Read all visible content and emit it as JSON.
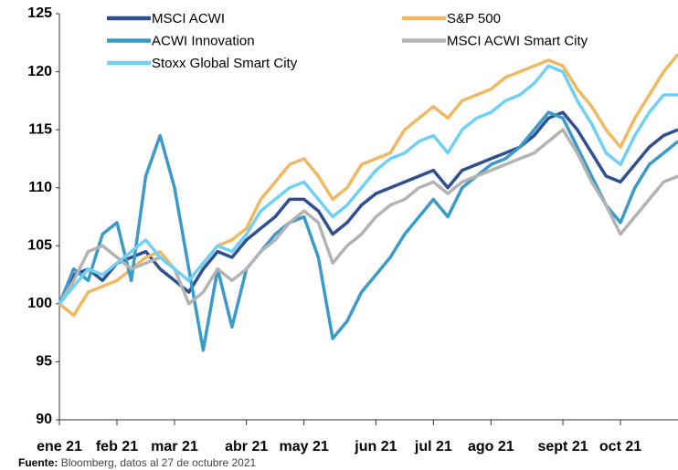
{
  "chart_data": {
    "type": "line",
    "categories": [
      "ene 21",
      null,
      null,
      null,
      "feb 21",
      null,
      null,
      null,
      "mar 21",
      null,
      null,
      null,
      null,
      "abr 21",
      null,
      null,
      null,
      "may 21",
      null,
      null,
      null,
      null,
      "jun 21",
      null,
      null,
      null,
      "jul 21",
      null,
      null,
      null,
      "ago 21",
      null,
      null,
      null,
      null,
      "sept 21",
      null,
      null,
      null,
      "oct 21",
      null,
      null,
      null,
      null
    ],
    "series": [
      {
        "name": "MSCI ACWI",
        "color": "#2f4f8f",
        "values": [
          100,
          102.5,
          103,
          102,
          103.5,
          104,
          104.5,
          103,
          102,
          101,
          103,
          104.5,
          104,
          105.5,
          106.5,
          107.5,
          109,
          109,
          108,
          106,
          107,
          108.5,
          109.5,
          110,
          110.5,
          111,
          111.5,
          110,
          111.5,
          112,
          112.5,
          113,
          113.5,
          114.5,
          116,
          116.5,
          115,
          113,
          111,
          110.5,
          112,
          113.5,
          114.5,
          115
        ]
      },
      {
        "name": "S&P 500",
        "color": "#f0b860",
        "values": [
          100,
          99,
          101,
          101.5,
          102,
          103,
          104,
          104.5,
          103,
          102,
          103.5,
          105,
          105.5,
          106.5,
          109,
          110.5,
          112,
          112.5,
          111,
          109,
          110,
          112,
          112.5,
          113,
          115,
          116,
          117,
          116,
          117.5,
          118,
          118.5,
          119.5,
          120,
          120.5,
          121,
          120.5,
          118.5,
          117,
          115,
          113.5,
          116,
          118,
          120,
          121.5
        ]
      },
      {
        "name": "ACWI Innovation",
        "color": "#3a9ac8",
        "values": [
          100,
          103,
          102,
          106,
          107,
          102,
          111,
          114.5,
          110,
          103,
          96,
          103,
          98,
          103,
          104.5,
          106,
          107,
          107.5,
          104,
          97,
          98.5,
          101,
          102.5,
          104,
          106,
          107.5,
          109,
          107.5,
          110,
          111,
          112,
          112.5,
          113.5,
          115,
          116.5,
          116,
          113.5,
          111,
          108.5,
          107,
          110,
          112,
          113,
          114
        ]
      },
      {
        "name": "MSCI ACWI Smart City",
        "color": "#b3b3b3",
        "values": [
          100,
          102,
          104.5,
          105,
          104,
          103,
          103.5,
          104,
          103,
          100,
          101,
          103,
          102,
          103,
          104.5,
          105.5,
          107,
          108,
          107,
          103.5,
          105,
          106,
          107.5,
          108.5,
          109,
          110,
          110.5,
          109.5,
          110.5,
          111,
          111.5,
          112,
          112.5,
          113,
          114,
          115,
          113,
          110.5,
          108.5,
          106,
          107.5,
          109,
          110.5,
          111
        ]
      },
      {
        "name": "Stoxx Global Smart City",
        "color": "#6fd0f5",
        "values": [
          100,
          101.5,
          103,
          102.5,
          103.5,
          104.5,
          105.5,
          104,
          103,
          102,
          103.5,
          105,
          104.5,
          106,
          108,
          109,
          110,
          110.5,
          109,
          107.5,
          108.5,
          110,
          111.5,
          112.5,
          113,
          114,
          114.5,
          113,
          115,
          116,
          116.5,
          117.5,
          118,
          119,
          120.5,
          120,
          117.5,
          115.5,
          113,
          112,
          114.5,
          116.5,
          118,
          118
        ]
      }
    ],
    "ylim": [
      90,
      125
    ],
    "yticks": [
      90,
      95,
      100,
      105,
      110,
      115,
      120,
      125
    ],
    "source_label": "Fuente:",
    "source": "Bloomberg, datos al 27 de octubre 2021"
  }
}
